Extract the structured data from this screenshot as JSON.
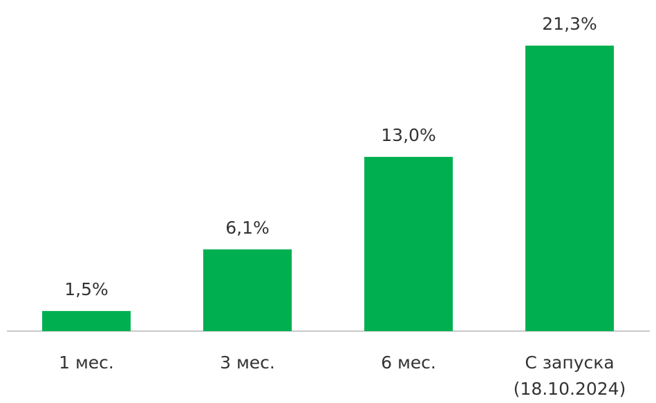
{
  "chart_data": {
    "type": "bar",
    "categories": [
      "1 мес.",
      "3 мес.",
      "6 мес.",
      "С запуска (18.10.2024)"
    ],
    "values": [
      1.5,
      6.1,
      13.0,
      21.3
    ],
    "value_labels": [
      "1,5%",
      "6,1%",
      "13,0%",
      "21,3%"
    ],
    "color": "#00b050"
  }
}
